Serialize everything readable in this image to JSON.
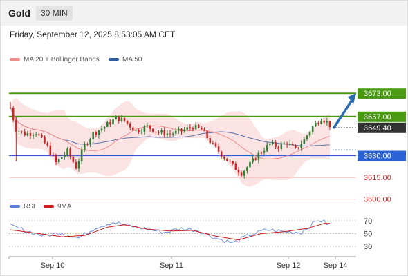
{
  "header": {
    "title": "Gold",
    "timeframe": "30 MIN",
    "timestamp": "Friday, September 12, 2025 8:53:05 AM CET"
  },
  "legend": {
    "price": [
      {
        "label": "MA 20 + Bollinger Bands",
        "color": "#f08a8a"
      },
      {
        "label": "MA 50",
        "color": "#2f5c9c"
      }
    ],
    "rsi": [
      {
        "label": "RSI",
        "color": "#5b7fd6"
      },
      {
        "label": "9MA",
        "color": "#d11a1a"
      }
    ]
  },
  "colors": {
    "up": "#2e7d32",
    "down": "#c62828",
    "green_line": "#4a9a14",
    "blue_line": "#2b63d6",
    "red_line": "#f2a3a3",
    "current": "#333333",
    "arrow": "#2b6cb0",
    "band_fill": "#fbd9d9"
  },
  "chart_data": {
    "type": "candlestick",
    "instrument": "Gold",
    "timeframe": "30 MIN",
    "ylim": [
      3595,
      3695
    ],
    "x_ticks": [
      "Sep 10",
      "Sep 11",
      "Sep 12",
      "Sep 14"
    ],
    "levels": [
      {
        "label": "3673.00",
        "value": 3673.0,
        "style": "resistance"
      },
      {
        "label": "3657.00",
        "value": 3657.0,
        "style": "resistance"
      },
      {
        "label": "3649.40",
        "value": 3649.4,
        "style": "current"
      },
      {
        "label": "3630.00",
        "value": 3630.0,
        "style": "support"
      },
      {
        "label": "3615.00",
        "value": 3615.0,
        "style": "target"
      },
      {
        "label": "3600.00",
        "value": 3600.0,
        "style": "target"
      }
    ],
    "arrow": {
      "from": 3649.4,
      "to": 3673.0
    },
    "waypoints": [
      [
        0,
        3663
      ],
      [
        2,
        3648
      ],
      [
        5,
        3645
      ],
      [
        9,
        3646
      ],
      [
        13,
        3636
      ],
      [
        16,
        3625
      ],
      [
        20,
        3633
      ],
      [
        23,
        3622
      ],
      [
        26,
        3637
      ],
      [
        29,
        3645
      ],
      [
        33,
        3650
      ],
      [
        37,
        3656
      ],
      [
        40,
        3654
      ],
      [
        44,
        3647
      ],
      [
        48,
        3650
      ],
      [
        52,
        3646
      ],
      [
        56,
        3645
      ],
      [
        60,
        3647
      ],
      [
        64,
        3650
      ],
      [
        67,
        3648
      ],
      [
        71,
        3637
      ],
      [
        74,
        3631
      ],
      [
        78,
        3623
      ],
      [
        81,
        3618
      ],
      [
        84,
        3624
      ],
      [
        87,
        3631
      ],
      [
        91,
        3638
      ],
      [
        94,
        3636
      ],
      [
        97,
        3639
      ],
      [
        100,
        3634
      ],
      [
        103,
        3641
      ],
      [
        106,
        3650
      ],
      [
        109,
        3656
      ],
      [
        111,
        3653
      ],
      [
        112,
        3651
      ]
    ],
    "rsi": {
      "levels": [
        70,
        50,
        30
      ],
      "ylim": [
        20,
        80
      ],
      "waypoints": [
        [
          0,
          62
        ],
        [
          6,
          54
        ],
        [
          12,
          46
        ],
        [
          18,
          52
        ],
        [
          24,
          43
        ],
        [
          30,
          60
        ],
        [
          36,
          68
        ],
        [
          42,
          62
        ],
        [
          48,
          57
        ],
        [
          54,
          52
        ],
        [
          60,
          58
        ],
        [
          66,
          55
        ],
        [
          72,
          43
        ],
        [
          78,
          35
        ],
        [
          84,
          48
        ],
        [
          90,
          56
        ],
        [
          96,
          53
        ],
        [
          102,
          52
        ],
        [
          108,
          72
        ],
        [
          112,
          64
        ]
      ],
      "ma9_waypoints": [
        [
          0,
          56
        ],
        [
          10,
          50
        ],
        [
          18,
          45
        ],
        [
          26,
          47
        ],
        [
          34,
          60
        ],
        [
          40,
          64
        ],
        [
          48,
          57
        ],
        [
          56,
          54
        ],
        [
          64,
          55
        ],
        [
          72,
          46
        ],
        [
          80,
          40
        ],
        [
          88,
          50
        ],
        [
          96,
          53
        ],
        [
          104,
          58
        ],
        [
          110,
          66
        ],
        [
          112,
          66
        ]
      ]
    }
  }
}
